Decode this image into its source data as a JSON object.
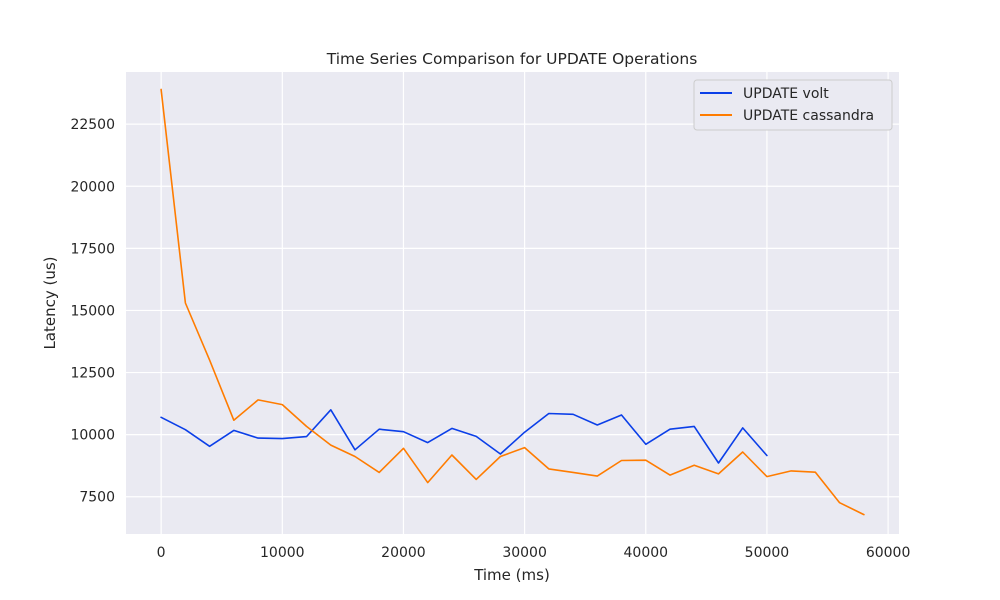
{
  "chart_data": {
    "type": "line",
    "title": "Time Series Comparison for UPDATE Operations",
    "xlabel": "Time (ms)",
    "ylabel": "Latency (us)",
    "xlim": [
      -2900,
      60900
    ],
    "ylim": [
      6000,
      24600
    ],
    "xticks": [
      0,
      10000,
      20000,
      30000,
      40000,
      50000,
      60000
    ],
    "xtick_labels": [
      "0",
      "10000",
      "20000",
      "30000",
      "40000",
      "50000",
      "60000"
    ],
    "yticks": [
      7500,
      10000,
      12500,
      15000,
      17500,
      20000,
      22500
    ],
    "ytick_labels": [
      "7500",
      "10000",
      "12500",
      "15000",
      "17500",
      "20000",
      "22500"
    ],
    "grid": true,
    "legend_position": "top-right",
    "background": "#eaeaf2",
    "series": [
      {
        "name": "UPDATE volt",
        "color": "#0b3fe8",
        "x": [
          0,
          2000,
          4000,
          6000,
          8000,
          10000,
          12000,
          14000,
          16000,
          18000,
          20000,
          22000,
          24000,
          26000,
          28000,
          30000,
          32000,
          34000,
          36000,
          38000,
          40000,
          42000,
          44000,
          46000,
          48000,
          50000
        ],
        "y": [
          10700,
          10200,
          9530,
          10170,
          9860,
          9840,
          9920,
          11000,
          9390,
          10220,
          10120,
          9680,
          10250,
          9930,
          9220,
          10100,
          10850,
          10820,
          10390,
          10790,
          9610,
          10220,
          10330,
          8860,
          10270,
          9160
        ]
      },
      {
        "name": "UPDATE cassandra",
        "color": "#ff7c00",
        "x": [
          0,
          2000,
          4000,
          6000,
          8000,
          10000,
          12000,
          14000,
          16000,
          18000,
          20000,
          22000,
          24000,
          26000,
          28000,
          30000,
          32000,
          34000,
          36000,
          38000,
          40000,
          42000,
          44000,
          46000,
          48000,
          50000,
          52000,
          54000,
          56000,
          58000
        ],
        "y": [
          23900,
          15300,
          13000,
          10580,
          11400,
          11210,
          10330,
          9580,
          9120,
          8480,
          9450,
          8070,
          9180,
          8200,
          9120,
          9480,
          8620,
          8480,
          8330,
          8960,
          8970,
          8370,
          8770,
          8420,
          9300,
          8310,
          8540,
          8490,
          7260,
          6780
        ]
      }
    ]
  }
}
